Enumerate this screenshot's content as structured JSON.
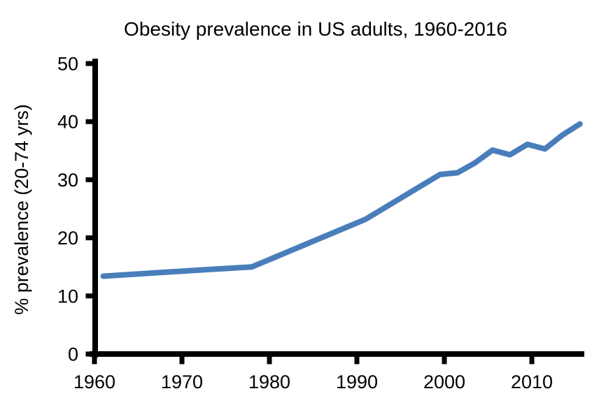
{
  "page": {
    "background": "#ffffff"
  },
  "chart_data": {
    "type": "line",
    "title": "Obesity prevalence in US adults, 1960-2016",
    "xlabel": "",
    "ylabel": "% prevalence (20-74 yrs)",
    "xlim": [
      1960,
      2016
    ],
    "ylim": [
      0,
      50
    ],
    "x_ticks": [
      1960,
      1970,
      1980,
      1990,
      2000,
      2010
    ],
    "y_ticks": [
      0,
      10,
      20,
      30,
      40,
      50
    ],
    "grid": false,
    "legend": "none",
    "line_color": "#4a7ebb",
    "axis_color": "#000000",
    "x": [
      1961,
      1972.5,
      1978,
      1991,
      1999.5,
      2001.5,
      2003.5,
      2005.5,
      2007.5,
      2009.5,
      2011.5,
      2013.5,
      2015.5
    ],
    "y": [
      13.4,
      14.5,
      15.0,
      23.2,
      30.9,
      31.2,
      32.9,
      35.1,
      34.3,
      36.1,
      35.3,
      37.7,
      39.6
    ]
  }
}
